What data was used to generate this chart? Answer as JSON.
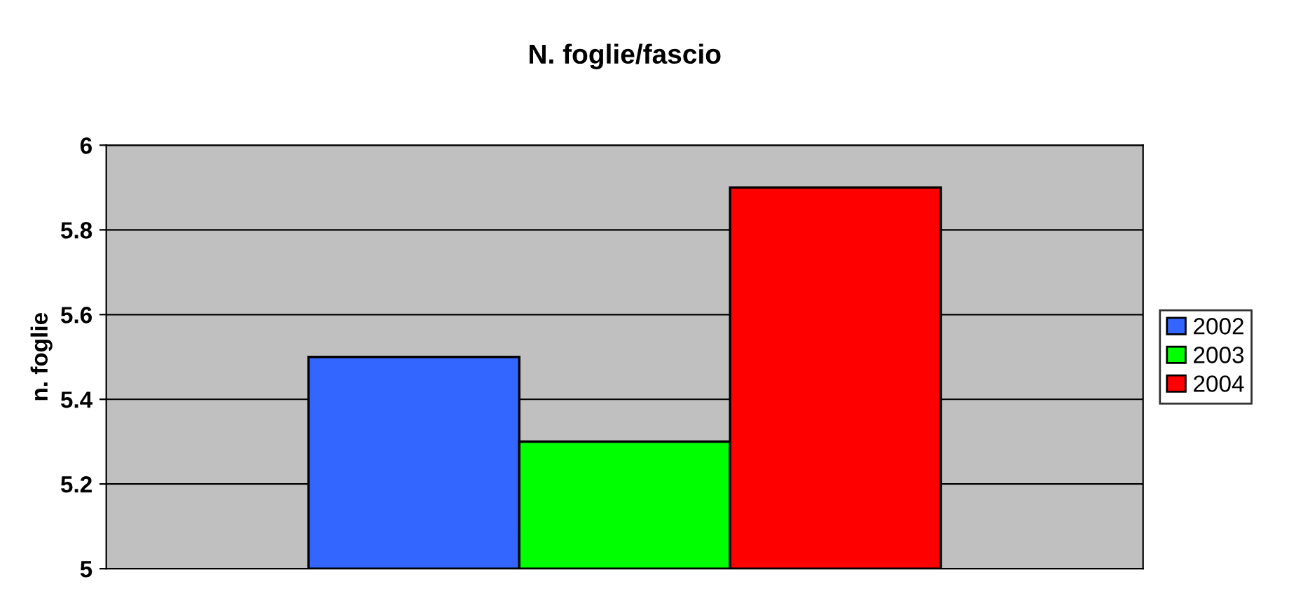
{
  "chart_data": {
    "type": "bar",
    "title": "N. foglie/fascio",
    "ylabel": "n. foglie",
    "categories": [
      null
    ],
    "series": [
      {
        "name": "2002",
        "color": "#3366ff",
        "values": [
          5.5
        ]
      },
      {
        "name": "2003",
        "color": "#00ff00",
        "values": [
          5.3
        ]
      },
      {
        "name": "2004",
        "color": "#ff0000",
        "values": [
          5.9
        ]
      }
    ],
    "ylim": [
      5,
      6
    ],
    "yticks": [
      5,
      5.2,
      5.4,
      5.6,
      5.8,
      6
    ],
    "grid": "y",
    "legend": "right"
  }
}
